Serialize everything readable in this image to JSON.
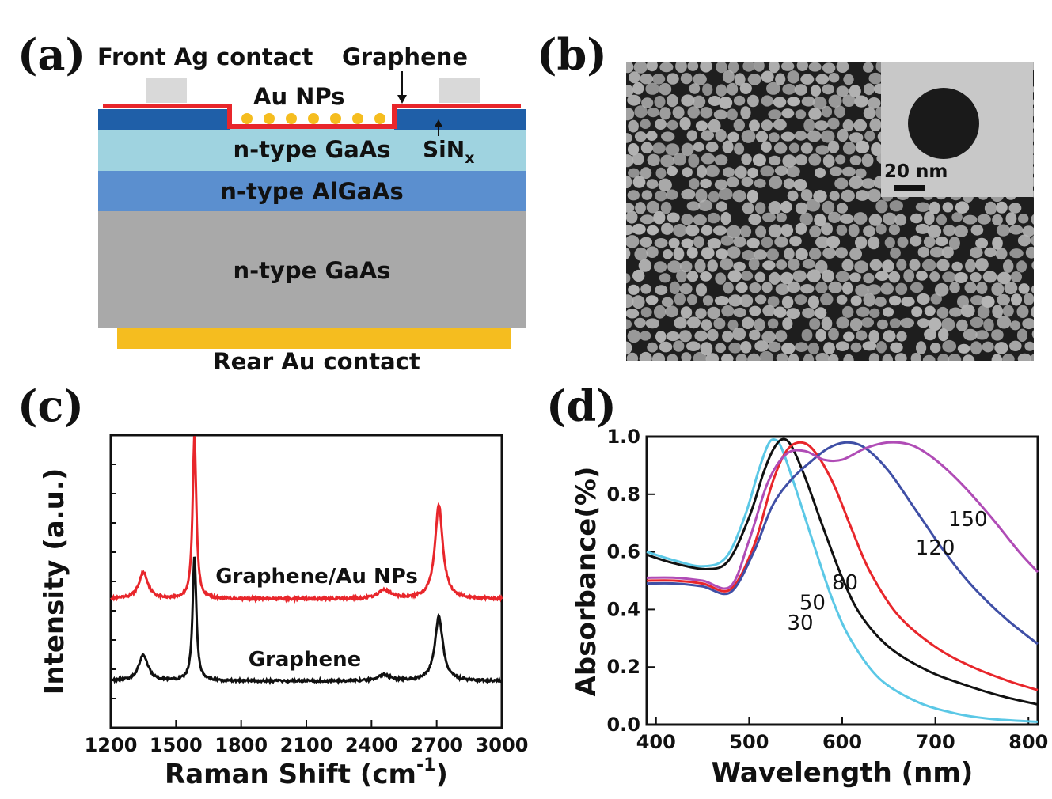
{
  "panels": {
    "a": {
      "letter": "(a)",
      "labels": {
        "front_contact": "Front Ag contact",
        "graphene": "Graphene",
        "au_nps": "Au NPs",
        "sinx_main": "SiN",
        "sinx_sub": "x",
        "layer_top": "n-type GaAs",
        "layer_mid": "n-type AlGaAs",
        "layer_bottom": "n-type GaAs",
        "rear_contact": "Rear Au contact"
      },
      "colors": {
        "graphene": "#e8262b",
        "sinx": "#1f5fa8",
        "gaas_top": "#9fd3e0",
        "algaas": "#5b8fcf",
        "gaas_substrate": "#a9a9a9",
        "ag_contact": "#d9d9d9",
        "au_contact": "#f5bd1f",
        "au_np": "#f5bd1f"
      },
      "np_count": 7
    },
    "b": {
      "letter": "(b)",
      "scale_bar": "20 nm",
      "colors": {
        "background": "#1e1e1e",
        "particle": "#b4b4b4",
        "tem_bg": "#c8c8c8",
        "tem_particle": "#1a1a1a"
      }
    },
    "c": {
      "letter": "(c)"
    },
    "d": {
      "letter": "(d)"
    }
  },
  "chart_data": [
    {
      "panel": "c",
      "type": "line",
      "xlabel_main": "Raman Shift (cm",
      "xlabel_sup": "-1",
      "xlabel_end": ")",
      "ylabel": "Intensity (a.u.)",
      "xlim": [
        1200,
        3000
      ],
      "xticks": [
        "1200",
        "1500",
        "1800",
        "2100",
        "2400",
        "2700",
        "3000"
      ],
      "peaks_cm-1": [
        1350,
        1585,
        2460,
        2710
      ],
      "series": [
        {
          "name": "Graphene/Au NPs",
          "color": "#e8262b",
          "baseline": 0.44,
          "peaks": [
            {
              "x": 1350,
              "height": 0.09,
              "width": 25
            },
            {
              "x": 1585,
              "height": 0.56,
              "width": 10
            },
            {
              "x": 2460,
              "height": 0.03,
              "width": 35
            },
            {
              "x": 2710,
              "height": 0.32,
              "width": 22
            }
          ]
        },
        {
          "name": "Graphene",
          "color": "#111111",
          "baseline": 0.16,
          "peaks": [
            {
              "x": 1350,
              "height": 0.09,
              "width": 25
            },
            {
              "x": 1585,
              "height": 0.43,
              "width": 10
            },
            {
              "x": 2460,
              "height": 0.02,
              "width": 35
            },
            {
              "x": 2710,
              "height": 0.22,
              "width": 22
            }
          ]
        }
      ]
    },
    {
      "panel": "d",
      "type": "line",
      "xlabel": "Wavelength (nm)",
      "ylabel": "Absorbance(%)",
      "xlim": [
        390,
        810
      ],
      "ylim": [
        0.0,
        1.0
      ],
      "xticks": [
        "400",
        "500",
        "600",
        "700",
        "800"
      ],
      "yticks": [
        "0.0",
        "0.2",
        "0.4",
        "0.6",
        "0.8",
        "1.0"
      ],
      "series": [
        {
          "name": "30",
          "color": "#5bc8e6",
          "points": [
            [
              390,
              0.6
            ],
            [
              420,
              0.57
            ],
            [
              450,
              0.55
            ],
            [
              475,
              0.58
            ],
            [
              495,
              0.72
            ],
            [
              510,
              0.88
            ],
            [
              520,
              0.97
            ],
            [
              527,
              0.99
            ],
            [
              535,
              0.96
            ],
            [
              550,
              0.82
            ],
            [
              570,
              0.62
            ],
            [
              590,
              0.43
            ],
            [
              610,
              0.29
            ],
            [
              640,
              0.16
            ],
            [
              680,
              0.08
            ],
            [
              720,
              0.04
            ],
            [
              760,
              0.02
            ],
            [
              810,
              0.01
            ]
          ]
        },
        {
          "name": "50",
          "color": "#111111",
          "points": [
            [
              390,
              0.59
            ],
            [
              420,
              0.56
            ],
            [
              455,
              0.54
            ],
            [
              478,
              0.57
            ],
            [
              500,
              0.72
            ],
            [
              515,
              0.87
            ],
            [
              525,
              0.95
            ],
            [
              535,
              0.99
            ],
            [
              545,
              0.97
            ],
            [
              560,
              0.86
            ],
            [
              580,
              0.68
            ],
            [
              600,
              0.51
            ],
            [
              620,
              0.38
            ],
            [
              650,
              0.27
            ],
            [
              690,
              0.19
            ],
            [
              730,
              0.14
            ],
            [
              770,
              0.1
            ],
            [
              810,
              0.07
            ]
          ]
        },
        {
          "name": "80",
          "color": "#e8262b",
          "points": [
            [
              390,
              0.5
            ],
            [
              420,
              0.5
            ],
            [
              450,
              0.49
            ],
            [
              480,
              0.47
            ],
            [
              505,
              0.62
            ],
            [
              525,
              0.84
            ],
            [
              540,
              0.95
            ],
            [
              555,
              0.98
            ],
            [
              570,
              0.95
            ],
            [
              590,
              0.84
            ],
            [
              610,
              0.68
            ],
            [
              630,
              0.53
            ],
            [
              660,
              0.38
            ],
            [
              700,
              0.27
            ],
            [
              740,
              0.2
            ],
            [
              780,
              0.15
            ],
            [
              810,
              0.12
            ]
          ]
        },
        {
          "name": "120",
          "color": "#3f4fa6",
          "points": [
            [
              390,
              0.49
            ],
            [
              420,
              0.49
            ],
            [
              450,
              0.48
            ],
            [
              480,
              0.46
            ],
            [
              505,
              0.6
            ],
            [
              525,
              0.76
            ],
            [
              545,
              0.85
            ],
            [
              565,
              0.91
            ],
            [
              585,
              0.96
            ],
            [
              605,
              0.98
            ],
            [
              625,
              0.96
            ],
            [
              650,
              0.88
            ],
            [
              680,
              0.74
            ],
            [
              710,
              0.6
            ],
            [
              740,
              0.48
            ],
            [
              775,
              0.37
            ],
            [
              810,
              0.28
            ]
          ]
        },
        {
          "name": "150",
          "color": "#b04cb6",
          "points": [
            [
              390,
              0.51
            ],
            [
              420,
              0.51
            ],
            [
              450,
              0.5
            ],
            [
              480,
              0.48
            ],
            [
              500,
              0.64
            ],
            [
              520,
              0.84
            ],
            [
              540,
              0.94
            ],
            [
              560,
              0.95
            ],
            [
              580,
              0.92
            ],
            [
              600,
              0.92
            ],
            [
              625,
              0.96
            ],
            [
              650,
              0.98
            ],
            [
              675,
              0.97
            ],
            [
              700,
              0.92
            ],
            [
              730,
              0.83
            ],
            [
              760,
              0.72
            ],
            [
              790,
              0.6
            ],
            [
              810,
              0.53
            ]
          ]
        }
      ],
      "series_label_positions": [
        {
          "name": "30",
          "x": 555,
          "y": 0.33
        },
        {
          "name": "50",
          "x": 568,
          "y": 0.4
        },
        {
          "name": "80",
          "x": 603,
          "y": 0.47
        },
        {
          "name": "120",
          "x": 700,
          "y": 0.59
        },
        {
          "name": "150",
          "x": 735,
          "y": 0.69
        }
      ]
    }
  ]
}
